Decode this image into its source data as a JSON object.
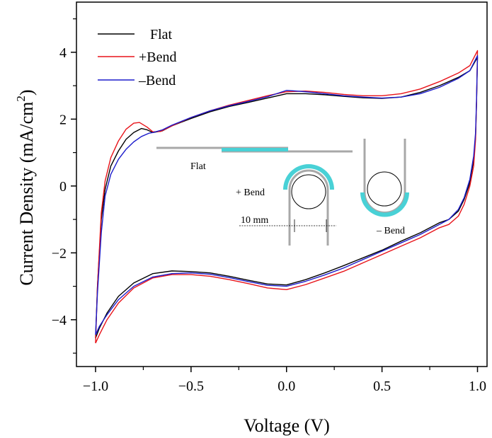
{
  "colors": {
    "flat": "#000000",
    "plus_bend": "#e8141a",
    "minus_bend": "#1c1ccc",
    "inset_substrate": "#a8a8a8",
    "inset_electrode": "#49d1d6"
  },
  "inset": {
    "flat_label": "Flat",
    "plus_bend_label": "+ Bend",
    "minus_bend_label": "– Bend",
    "scale_label": "10 mm"
  },
  "chart_data": {
    "type": "line",
    "xlabel": "Voltage (V)",
    "ylabel": "Current Density (mA/cm²)",
    "ylabel_main": "Current Density (mA/cm",
    "ylabel_sup": "2",
    "ylabel_tail": ")",
    "xlim": [
      -1.1,
      1.05
    ],
    "ylim": [
      -5.4,
      5.5
    ],
    "x_ticks": [
      -1.0,
      -0.5,
      0.0,
      0.5,
      1.0
    ],
    "x_tick_labels": [
      "−1.0",
      "−0.5",
      "0.0",
      "0.5",
      "1.0"
    ],
    "y_ticks": [
      -4,
      -2,
      0,
      2,
      4
    ],
    "y_tick_labels": [
      "−4",
      "−2",
      "0",
      "2",
      "4"
    ],
    "grid": false,
    "legend_position": "top-left",
    "series": [
      {
        "name": "Flat",
        "color": "#000000",
        "forward": [
          [
            -1.0,
            -4.55
          ],
          [
            -0.99,
            -3.0
          ],
          [
            -0.97,
            -1.0
          ],
          [
            -0.95,
            -0.1
          ],
          [
            -0.92,
            0.6
          ],
          [
            -0.88,
            1.05
          ],
          [
            -0.84,
            1.4
          ],
          [
            -0.8,
            1.6
          ],
          [
            -0.76,
            1.72
          ],
          [
            -0.73,
            1.68
          ],
          [
            -0.7,
            1.6
          ],
          [
            -0.65,
            1.65
          ],
          [
            -0.6,
            1.8
          ],
          [
            -0.5,
            2.02
          ],
          [
            -0.4,
            2.22
          ],
          [
            -0.3,
            2.38
          ],
          [
            -0.2,
            2.5
          ],
          [
            -0.1,
            2.63
          ],
          [
            0.0,
            2.76
          ],
          [
            0.1,
            2.76
          ],
          [
            0.2,
            2.73
          ],
          [
            0.3,
            2.68
          ],
          [
            0.4,
            2.64
          ],
          [
            0.5,
            2.62
          ],
          [
            0.6,
            2.66
          ],
          [
            0.7,
            2.8
          ],
          [
            0.8,
            3.0
          ],
          [
            0.9,
            3.25
          ],
          [
            0.96,
            3.45
          ],
          [
            1.0,
            3.85
          ]
        ],
        "reverse": [
          [
            1.0,
            3.85
          ],
          [
            0.995,
            2.5
          ],
          [
            0.99,
            1.5
          ],
          [
            0.98,
            0.8
          ],
          [
            0.96,
            0.1
          ],
          [
            0.93,
            -0.4
          ],
          [
            0.9,
            -0.75
          ],
          [
            0.85,
            -1.0
          ],
          [
            0.8,
            -1.1
          ],
          [
            0.7,
            -1.4
          ],
          [
            0.6,
            -1.65
          ],
          [
            0.5,
            -1.92
          ],
          [
            0.4,
            -2.15
          ],
          [
            0.3,
            -2.38
          ],
          [
            0.2,
            -2.6
          ],
          [
            0.1,
            -2.8
          ],
          [
            0.0,
            -2.96
          ],
          [
            -0.1,
            -2.93
          ],
          [
            -0.2,
            -2.82
          ],
          [
            -0.3,
            -2.7
          ],
          [
            -0.4,
            -2.6
          ],
          [
            -0.5,
            -2.56
          ],
          [
            -0.6,
            -2.54
          ],
          [
            -0.7,
            -2.62
          ],
          [
            -0.8,
            -2.9
          ],
          [
            -0.88,
            -3.3
          ],
          [
            -0.94,
            -3.8
          ],
          [
            -0.98,
            -4.25
          ],
          [
            -1.0,
            -4.55
          ]
        ]
      },
      {
        "name": "+Bend",
        "color": "#e8141a",
        "forward": [
          [
            -1.0,
            -4.7
          ],
          [
            -0.99,
            -3.0
          ],
          [
            -0.97,
            -0.8
          ],
          [
            -0.95,
            0.15
          ],
          [
            -0.92,
            0.85
          ],
          [
            -0.88,
            1.35
          ],
          [
            -0.84,
            1.7
          ],
          [
            -0.8,
            1.88
          ],
          [
            -0.77,
            1.9
          ],
          [
            -0.73,
            1.76
          ],
          [
            -0.7,
            1.62
          ],
          [
            -0.66,
            1.63
          ],
          [
            -0.6,
            1.8
          ],
          [
            -0.5,
            2.05
          ],
          [
            -0.4,
            2.25
          ],
          [
            -0.3,
            2.42
          ],
          [
            -0.2,
            2.56
          ],
          [
            -0.1,
            2.7
          ],
          [
            0.0,
            2.82
          ],
          [
            0.1,
            2.84
          ],
          [
            0.2,
            2.8
          ],
          [
            0.3,
            2.74
          ],
          [
            0.4,
            2.7
          ],
          [
            0.5,
            2.7
          ],
          [
            0.6,
            2.76
          ],
          [
            0.7,
            2.9
          ],
          [
            0.8,
            3.12
          ],
          [
            0.9,
            3.38
          ],
          [
            0.96,
            3.6
          ],
          [
            1.0,
            4.05
          ]
        ],
        "reverse": [
          [
            1.0,
            4.05
          ],
          [
            0.995,
            2.5
          ],
          [
            0.99,
            1.4
          ],
          [
            0.98,
            0.6
          ],
          [
            0.96,
            0.0
          ],
          [
            0.93,
            -0.55
          ],
          [
            0.9,
            -0.9
          ],
          [
            0.85,
            -1.15
          ],
          [
            0.8,
            -1.25
          ],
          [
            0.7,
            -1.55
          ],
          [
            0.6,
            -1.8
          ],
          [
            0.5,
            -2.05
          ],
          [
            0.4,
            -2.3
          ],
          [
            0.3,
            -2.55
          ],
          [
            0.2,
            -2.75
          ],
          [
            0.1,
            -2.95
          ],
          [
            0.0,
            -3.1
          ],
          [
            -0.1,
            -3.05
          ],
          [
            -0.2,
            -2.92
          ],
          [
            -0.3,
            -2.8
          ],
          [
            -0.4,
            -2.7
          ],
          [
            -0.5,
            -2.65
          ],
          [
            -0.6,
            -2.65
          ],
          [
            -0.7,
            -2.75
          ],
          [
            -0.8,
            -3.05
          ],
          [
            -0.88,
            -3.5
          ],
          [
            -0.94,
            -4.0
          ],
          [
            -0.98,
            -4.45
          ],
          [
            -1.0,
            -4.7
          ]
        ]
      },
      {
        "name": "–Bend",
        "color": "#1c1ccc",
        "forward": [
          [
            -1.0,
            -4.45
          ],
          [
            -0.99,
            -3.2
          ],
          [
            -0.97,
            -1.4
          ],
          [
            -0.95,
            -0.3
          ],
          [
            -0.92,
            0.35
          ],
          [
            -0.88,
            0.8
          ],
          [
            -0.84,
            1.1
          ],
          [
            -0.8,
            1.32
          ],
          [
            -0.76,
            1.48
          ],
          [
            -0.72,
            1.58
          ],
          [
            -0.7,
            1.6
          ],
          [
            -0.65,
            1.68
          ],
          [
            -0.6,
            1.82
          ],
          [
            -0.5,
            2.05
          ],
          [
            -0.4,
            2.25
          ],
          [
            -0.3,
            2.4
          ],
          [
            -0.2,
            2.53
          ],
          [
            -0.1,
            2.67
          ],
          [
            0.0,
            2.86
          ],
          [
            0.1,
            2.82
          ],
          [
            0.2,
            2.76
          ],
          [
            0.3,
            2.7
          ],
          [
            0.4,
            2.66
          ],
          [
            0.5,
            2.63
          ],
          [
            0.6,
            2.66
          ],
          [
            0.7,
            2.76
          ],
          [
            0.8,
            2.95
          ],
          [
            0.9,
            3.22
          ],
          [
            0.96,
            3.45
          ],
          [
            1.0,
            3.9
          ]
        ],
        "reverse": [
          [
            1.0,
            3.9
          ],
          [
            0.995,
            2.6
          ],
          [
            0.99,
            1.6
          ],
          [
            0.98,
            0.9
          ],
          [
            0.96,
            0.2
          ],
          [
            0.93,
            -0.35
          ],
          [
            0.9,
            -0.7
          ],
          [
            0.85,
            -1.0
          ],
          [
            0.8,
            -1.15
          ],
          [
            0.7,
            -1.45
          ],
          [
            0.6,
            -1.7
          ],
          [
            0.5,
            -1.95
          ],
          [
            0.4,
            -2.2
          ],
          [
            0.3,
            -2.45
          ],
          [
            0.2,
            -2.66
          ],
          [
            0.1,
            -2.85
          ],
          [
            0.0,
            -3.0
          ],
          [
            -0.1,
            -2.97
          ],
          [
            -0.2,
            -2.86
          ],
          [
            -0.3,
            -2.74
          ],
          [
            -0.4,
            -2.64
          ],
          [
            -0.5,
            -2.6
          ],
          [
            -0.6,
            -2.62
          ],
          [
            -0.7,
            -2.72
          ],
          [
            -0.8,
            -3.0
          ],
          [
            -0.88,
            -3.4
          ],
          [
            -0.94,
            -3.85
          ],
          [
            -0.98,
            -4.2
          ],
          [
            -1.0,
            -4.45
          ]
        ]
      }
    ]
  }
}
